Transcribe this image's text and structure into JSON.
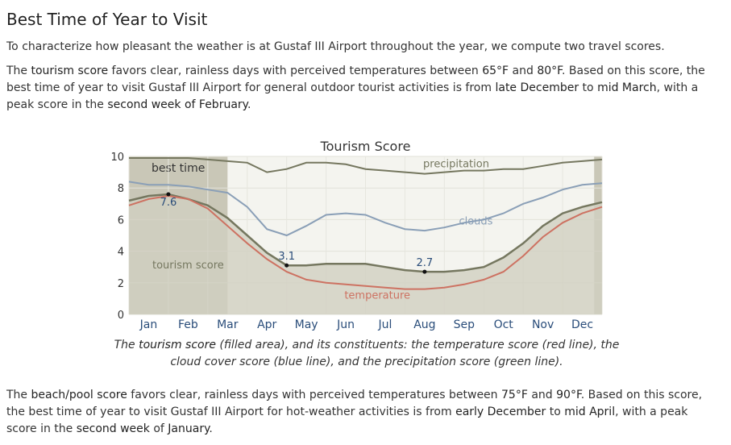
{
  "heading": "Best Time of Year to Visit",
  "intro": "To characterize how pleasant the weather is at Gustaf III Airport throughout the year, we compute two travel scores.",
  "tourism_paragraph": {
    "t1": "The ",
    "b1": "tourism score",
    "t2": " favors clear, rainless days with perceived temperatures between ",
    "b2": "65°F",
    "t3": " and ",
    "b3": "80°F",
    "t4": ". Based on this score, the best time of year to visit Gustaf III Airport for general outdoor tourist activities is from ",
    "b4": "late December",
    "t5": " to ",
    "b5": "mid March",
    "t6": ", with a peak score in the ",
    "b6": "second week of February",
    "t7": "."
  },
  "caption": {
    "t1": "The ",
    "b1": "tourism score",
    "t2": " (filled area), and its constituents: the temperature score (red line), the cloud cover score (blue line), and the precipitation score (green line)."
  },
  "beach_paragraph": {
    "t1": "The ",
    "b1": "beach/pool score",
    "t2": " favors clear, rainless days with perceived temperatures between ",
    "b2": "75°F",
    "t3": " and ",
    "b3": "90°F",
    "t4": ". Based on this score, the best time of year to visit Gustaf III Airport for hot-weather activities is from ",
    "b4": "early December",
    "t5": " to ",
    "b5": "mid April",
    "t6": ", with a peak score in the ",
    "b6": "second week",
    "t7": " of ",
    "b7": "January",
    "t8": "."
  },
  "chart_data": {
    "type": "area",
    "title": "Tourism Score",
    "xlabel": "",
    "ylabel": "",
    "ylim": [
      0,
      10
    ],
    "yticks": [
      0,
      2,
      4,
      6,
      8,
      10
    ],
    "grid": true,
    "categories": [
      "Jan",
      "Feb",
      "Mar",
      "Apr",
      "May",
      "Jun",
      "Jul",
      "Aug",
      "Sep",
      "Oct",
      "Nov",
      "Dec"
    ],
    "x": [
      0,
      0.5,
      1,
      1.5,
      2,
      2.5,
      3,
      3.5,
      4,
      4.5,
      5,
      5.5,
      6,
      6.5,
      7,
      7.5,
      8,
      8.5,
      9,
      9.5,
      10,
      10.5,
      11,
      11.5,
      12
    ],
    "best_time": {
      "label": "best time",
      "ranges": [
        [
          0,
          2.5
        ],
        [
          11.8,
          12
        ]
      ]
    },
    "series": [
      {
        "name": "tourism score",
        "role": "area",
        "color": "#75775f",
        "fill": "#d1cfc0",
        "values": [
          7.2,
          7.5,
          7.6,
          7.3,
          6.9,
          6.1,
          5.0,
          3.9,
          3.1,
          3.1,
          3.2,
          3.2,
          3.2,
          3.0,
          2.8,
          2.7,
          2.7,
          2.8,
          3.0,
          3.6,
          4.5,
          5.6,
          6.4,
          6.8,
          7.1
        ]
      },
      {
        "name": "temperature",
        "role": "line",
        "color": "#cd7262",
        "values": [
          6.9,
          7.3,
          7.5,
          7.3,
          6.7,
          5.6,
          4.5,
          3.5,
          2.7,
          2.2,
          2.0,
          1.9,
          1.8,
          1.7,
          1.6,
          1.6,
          1.7,
          1.9,
          2.2,
          2.7,
          3.7,
          4.9,
          5.8,
          6.4,
          6.8
        ]
      },
      {
        "name": "clouds",
        "role": "line",
        "color": "#8a9fb7",
        "values": [
          8.4,
          8.2,
          8.2,
          8.1,
          7.9,
          7.7,
          6.8,
          5.4,
          5.0,
          5.6,
          6.3,
          6.4,
          6.3,
          5.8,
          5.4,
          5.3,
          5.5,
          5.8,
          6.0,
          6.4,
          7.0,
          7.4,
          7.9,
          8.2,
          8.3
        ]
      },
      {
        "name": "precipitation",
        "role": "line",
        "color": "#75775f",
        "values": [
          9.9,
          9.9,
          9.9,
          9.9,
          9.8,
          9.7,
          9.6,
          9.0,
          9.2,
          9.6,
          9.6,
          9.5,
          9.2,
          9.1,
          9.0,
          8.9,
          9.0,
          9.1,
          9.1,
          9.2,
          9.2,
          9.4,
          9.6,
          9.7,
          9.8
        ]
      }
    ],
    "annotations": [
      {
        "text": "7.6",
        "x": 1.0,
        "y": 7.6
      },
      {
        "text": "3.1",
        "x": 4.0,
        "y": 3.1
      },
      {
        "text": "2.7",
        "x": 7.5,
        "y": 2.7
      }
    ],
    "series_labels": [
      {
        "text": "precipitation",
        "x": 8.3,
        "y": 9.3,
        "color": "#75775f"
      },
      {
        "text": "clouds",
        "x": 8.8,
        "y": 5.7,
        "color": "#8a9fb7"
      },
      {
        "text": "tourism score",
        "x": 1.5,
        "y": 2.9,
        "color": "#75775f"
      },
      {
        "text": "temperature",
        "x": 6.3,
        "y": 1.0,
        "color": "#cd7262"
      }
    ]
  }
}
